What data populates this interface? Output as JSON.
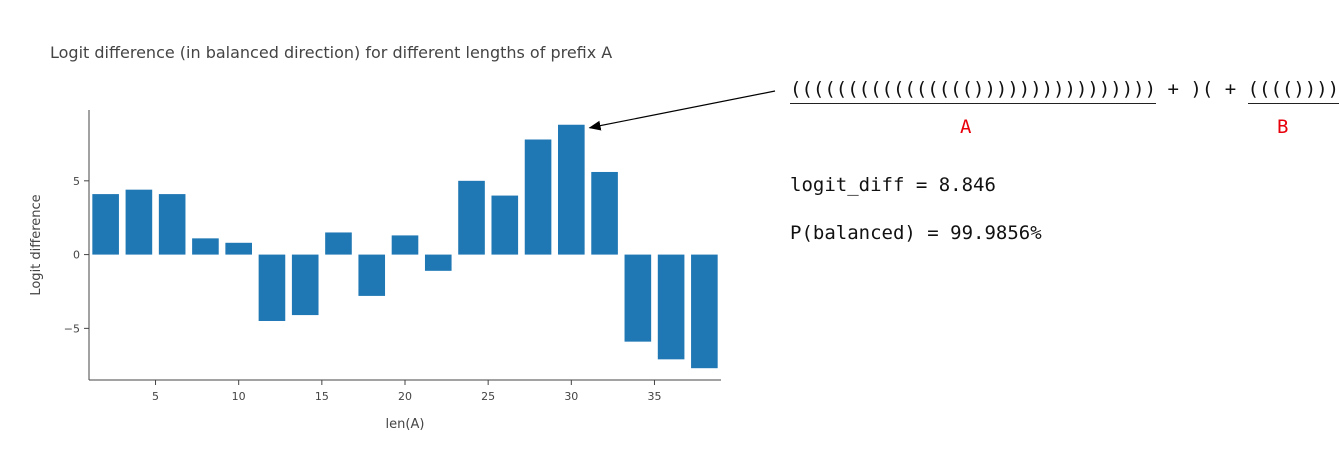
{
  "chart_data": {
    "type": "bar",
    "title": "Logit difference (in balanced direction) for different lengths of prefix A",
    "xlabel": "len(A)",
    "ylabel": "Logit difference",
    "x": [
      2,
      4,
      6,
      8,
      10,
      12,
      14,
      16,
      18,
      20,
      22,
      24,
      26,
      28,
      30,
      32,
      34,
      36,
      38
    ],
    "values": [
      4.1,
      4.4,
      4.1,
      1.1,
      0.8,
      -4.5,
      -4.1,
      1.5,
      -2.8,
      1.3,
      -1.1,
      5.0,
      4.0,
      7.8,
      8.8,
      5.6,
      -5.9,
      -7.1,
      -7.7
    ],
    "xlim": [
      1,
      39
    ],
    "ylim": [
      -8.5,
      9.8
    ],
    "x_ticks": [
      5,
      10,
      15,
      20,
      25,
      30,
      35
    ],
    "y_ticks": [
      -5,
      0,
      5
    ],
    "y_tick_labels": [
      "−5",
      "0",
      "5"
    ],
    "bar_color": "#1f77b4",
    "grid": false
  },
  "annotation": {
    "prefix_a": "(((((((((((((((())))))))))))))))",
    "plus1": " + ",
    "middle": ")(",
    "plus2": " + ",
    "suffix_b": "(((())))",
    "label_a": "A",
    "label_b": "B",
    "arrow_target_x": 30
  },
  "stats": {
    "logit_diff": "logit_diff = 8.846",
    "p_balanced": "P(balanced) = 99.9856%"
  },
  "colors": {
    "label_red": "#e8000b"
  }
}
